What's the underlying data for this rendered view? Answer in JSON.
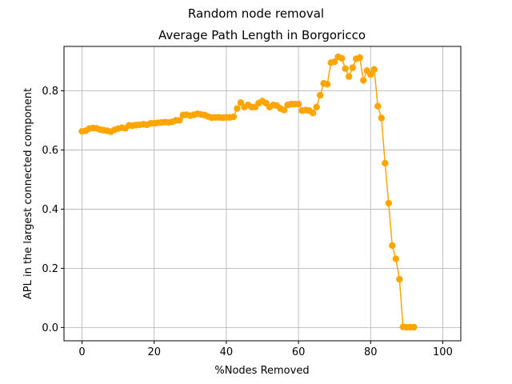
{
  "chart_data": {
    "type": "line",
    "suptitle": "Random node removal",
    "title": "Average Path Length in Borgoricco",
    "xlabel": "%Nodes Removed",
    "ylabel": "APL in the largest connected component",
    "xlim": [
      -5,
      105
    ],
    "ylim": [
      -0.045,
      0.95
    ],
    "xticks": [
      0,
      20,
      40,
      60,
      80,
      100
    ],
    "yticks": [
      0.0,
      0.2,
      0.4,
      0.6,
      0.8
    ],
    "xtick_labels": [
      "0",
      "20",
      "40",
      "60",
      "80",
      "100"
    ],
    "ytick_labels": [
      "0.0",
      "0.2",
      "0.4",
      "0.6",
      "0.8"
    ],
    "grid": true,
    "color": "#ffa500",
    "marker": "circle",
    "series": [
      {
        "x": [
          0,
          1,
          2,
          3,
          4,
          5,
          6,
          7,
          8,
          9,
          10,
          11,
          12,
          13,
          14,
          15,
          16,
          17,
          18,
          19,
          20,
          21,
          22,
          23,
          24,
          25,
          26,
          27,
          28,
          29,
          30,
          31,
          32,
          33,
          34,
          35,
          36,
          37,
          38,
          39,
          40,
          41,
          42,
          43,
          44,
          45,
          46,
          47,
          48,
          49,
          50,
          51,
          52,
          53,
          54,
          55,
          56,
          57,
          58,
          59,
          60,
          61,
          62,
          63,
          64,
          65,
          66,
          67,
          68,
          69,
          70,
          71,
          72,
          73,
          74,
          75,
          76,
          77,
          78,
          79,
          80,
          81,
          82,
          83,
          84,
          85,
          86,
          87,
          88,
          89,
          90,
          91,
          92,
          93,
          94,
          95,
          96,
          97,
          98,
          99,
          100
        ],
        "y": [
          0.663,
          0.665,
          0.672,
          0.674,
          0.673,
          0.669,
          0.667,
          0.665,
          0.662,
          0.668,
          0.672,
          0.675,
          0.673,
          0.683,
          0.682,
          0.684,
          0.685,
          0.687,
          0.685,
          0.69,
          0.69,
          0.692,
          0.693,
          0.694,
          0.693,
          0.695,
          0.7,
          0.7,
          0.718,
          0.719,
          0.716,
          0.719,
          0.722,
          0.72,
          0.718,
          0.713,
          0.709,
          0.71,
          0.71,
          0.709,
          0.71,
          0.71,
          0.712,
          0.74,
          0.76,
          0.745,
          0.752,
          0.745,
          0.745,
          0.758,
          0.765,
          0.758,
          0.745,
          0.752,
          0.75,
          0.74,
          0.735,
          0.752,
          0.755,
          0.755,
          0.755,
          0.733,
          0.735,
          0.733,
          0.725,
          0.745,
          0.785,
          0.825,
          0.822,
          0.895,
          0.898,
          0.915,
          0.91,
          0.875,
          0.848,
          0.878,
          0.908,
          0.912,
          0.835,
          0.868,
          0.855,
          0.872,
          0.748,
          0.708,
          0.555,
          0.42,
          0.277,
          0.232,
          0.163,
          0.002,
          0.001,
          0.001,
          0.001,
          null,
          null,
          null,
          null,
          null,
          null,
          null,
          null
        ]
      }
    ]
  }
}
